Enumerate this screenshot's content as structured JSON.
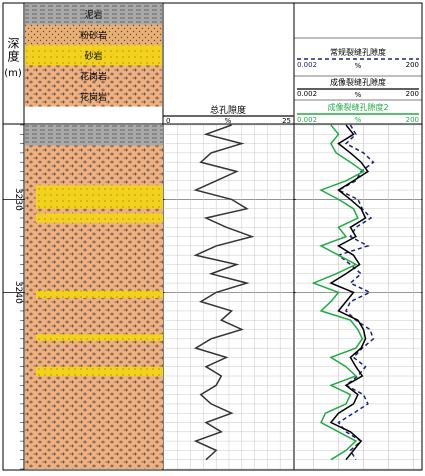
{
  "chart_data": {
    "type": "line",
    "depth_axis": {
      "title": "深度",
      "unit": "(m)",
      "tick_labels": [
        "3230",
        "3240"
      ],
      "range": [
        3222,
        3259
      ]
    },
    "lithology_track": {
      "legend": [
        {
          "name": "泥岩",
          "pattern": "shale"
        },
        {
          "name": "粉砂岩",
          "pattern": "siltstone"
        },
        {
          "name": "砂岩",
          "pattern": "sandstone"
        },
        {
          "name": "花岗岩",
          "pattern": "granite"
        },
        {
          "name": "花岗岩",
          "pattern": "granite2"
        }
      ],
      "colors": {
        "shale": "#a8a8a8",
        "siltstone": "#e8b077",
        "sandstone": "#f2d21c",
        "granite": "#f0b080"
      }
    },
    "porosity_track": {
      "title": "总孔隙度",
      "unit": "%",
      "min": 0,
      "max": 25,
      "min_label": "0",
      "max_label": "25",
      "color": "#333333",
      "depth": [
        3222,
        3223,
        3224,
        3225,
        3226,
        3227,
        3228,
        3229,
        3230,
        3231,
        3232,
        3233,
        3234,
        3235,
        3236,
        3237,
        3238,
        3239,
        3240,
        3241,
        3242,
        3243,
        3244,
        3245,
        3246,
        3247,
        3248,
        3249,
        3250,
        3251,
        3252,
        3253,
        3254,
        3255,
        3256,
        3257,
        3258
      ],
      "values": [
        13,
        8,
        15,
        9,
        7,
        14,
        10,
        6,
        13,
        16,
        8,
        12,
        17,
        10,
        6,
        14,
        9,
        16,
        10,
        7,
        13,
        11,
        15,
        9,
        6,
        12,
        8,
        11,
        10,
        7,
        9,
        13,
        8,
        11,
        6,
        10,
        8
      ]
    },
    "fracture_track": {
      "curves": [
        {
          "name": "常规裂缝孔隙度",
          "unit": "%",
          "min_label": "0.002",
          "max_label": "200",
          "color": "#1a237e",
          "dash": "4,3",
          "values": [
            0.3,
            0.5,
            0.2,
            1.0,
            2.5,
            0.8,
            0.5,
            0.1,
            0.6,
            0.9,
            2.0,
            0.5,
            0.3,
            1.5,
            0.1,
            0.3,
            0.8,
            0.3,
            1.8,
            0.3,
            0.2,
            0.5,
            1.8,
            2.5,
            0.9,
            0.4,
            1.2,
            0.6,
            0.2,
            1.0,
            1.5,
            0.4,
            0.1,
            0.2,
            0.8,
            0.3,
            0.5
          ]
        },
        {
          "name": "成像裂缝孔隙度",
          "unit": "%",
          "min_label": "0.002",
          "max_label": "200",
          "color": "#000000",
          "dash": "",
          "values": [
            0.2,
            0.4,
            0.1,
            0.3,
            0.8,
            1.5,
            0.4,
            0.1,
            0.3,
            0.8,
            1.2,
            0.3,
            0.5,
            0.1,
            0.4,
            0.7,
            0.2,
            0.05,
            0.4,
            0.2,
            0.1,
            0.6,
            1.0,
            1.2,
            0.8,
            0.3,
            0.5,
            0.9,
            0.2,
            0.6,
            0.4,
            0.1,
            0.05,
            0.3,
            0.8,
            0.4,
            0.2
          ]
        },
        {
          "name": "成像裂缝孔隙度2",
          "unit": "%",
          "min_label": "0.002",
          "max_label": "200",
          "color": "#22aa44",
          "dash": "",
          "values": [
            0.05,
            0.1,
            0.05,
            0.08,
            0.3,
            1.0,
            0.2,
            0.02,
            0.1,
            0.4,
            0.6,
            0.1,
            0.2,
            0.02,
            0.1,
            0.5,
            0.08,
            0.01,
            0.1,
            0.05,
            0.02,
            0.3,
            0.6,
            0.9,
            0.5,
            0.05,
            0.2,
            0.5,
            0.05,
            0.3,
            0.2,
            0.03,
            0.02,
            0.1,
            0.5,
            0.2,
            0.05
          ]
        }
      ]
    }
  }
}
